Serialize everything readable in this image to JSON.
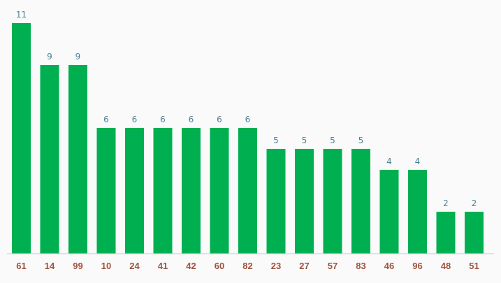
{
  "chart_data": {
    "type": "bar",
    "categories": [
      "61",
      "14",
      "99",
      "10",
      "24",
      "41",
      "42",
      "60",
      "82",
      "23",
      "27",
      "57",
      "83",
      "46",
      "96",
      "48",
      "51"
    ],
    "values": [
      11,
      9,
      9,
      6,
      6,
      6,
      6,
      6,
      6,
      5,
      5,
      5,
      5,
      4,
      4,
      2,
      2
    ],
    "title": "",
    "xlabel": "",
    "ylabel": "",
    "ylim": [
      0,
      12.1
    ],
    "grid": false,
    "data_labels": true,
    "colors": {
      "bar": "#00b050",
      "value_label": "#4e7f93",
      "category_label": "#a0523f",
      "baseline": "#c8c8c8",
      "background": "#fafafa"
    }
  }
}
